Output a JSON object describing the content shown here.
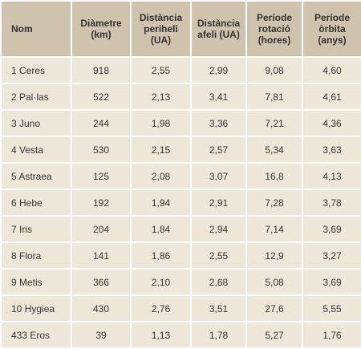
{
  "table": {
    "header": [
      [
        "Nom"
      ],
      [
        "Diàmetre",
        "(km)"
      ],
      [
        "Distància",
        "periheli",
        "(UA)"
      ],
      [
        "Distància",
        "afeli (UA)"
      ],
      [
        "Període",
        "rotació",
        "(hores)"
      ],
      [
        "Període",
        "òrbita",
        "(anys)"
      ]
    ],
    "rows": [
      [
        "1 Ceres",
        "918",
        "2,55",
        "2,99",
        "9,08",
        "4,60"
      ],
      [
        "2 Pal·las",
        "522",
        "2,13",
        "3,41",
        "7,81",
        "4,61"
      ],
      [
        "3 Juno",
        "244",
        "1,98",
        "3,36",
        "7,21",
        "4,36"
      ],
      [
        "4 Vesta",
        "530",
        "2,15",
        "2,57",
        "5,34",
        "3,63"
      ],
      [
        "5 Astraea",
        "125",
        "2,08",
        "3,07",
        "16,8",
        "4,13"
      ],
      [
        "6 Hebe",
        "192",
        "1,94",
        "2,91",
        "7,28",
        "3,78"
      ],
      [
        "7 Iris",
        "204",
        "1,84",
        "2,94",
        "7,14",
        "3,69"
      ],
      [
        "8 Flora",
        "141",
        "1,86",
        "2,55",
        "12,9",
        "3,27"
      ],
      [
        "9 Metis",
        "366",
        "2,10",
        "2,68",
        "5,08",
        "3,69"
      ],
      [
        "10 Hygiea",
        "430",
        "2,76",
        "3,51",
        "27,6",
        "5,55"
      ],
      [
        "433 Eros",
        "39",
        "1,13",
        "1,78",
        "5,27",
        "1,76"
      ]
    ]
  }
}
